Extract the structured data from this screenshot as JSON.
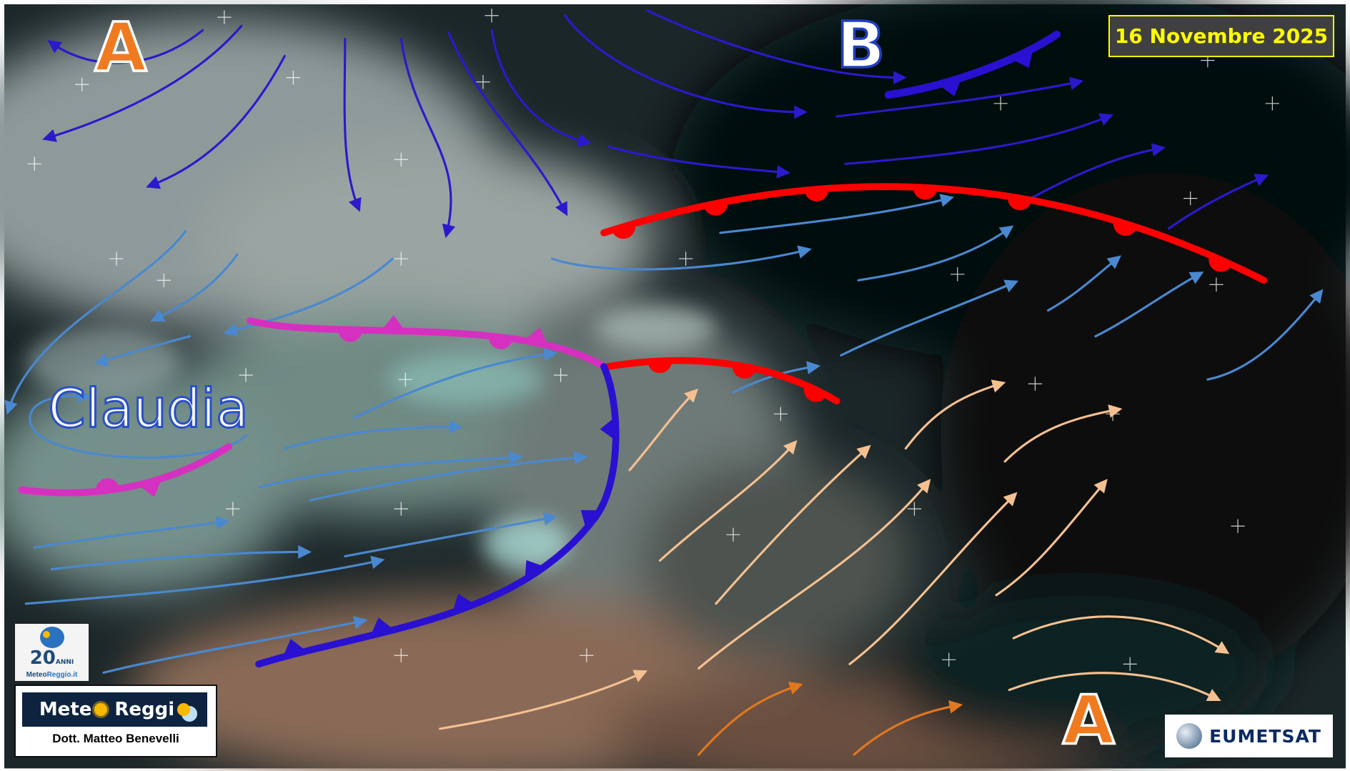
{
  "date_label": "16 Novembre 2025",
  "pressure_centers": [
    {
      "label": "A",
      "type": "high",
      "fill": "#f07a20"
    },
    {
      "label": "B",
      "type": "low",
      "fill": "#ffffff"
    },
    {
      "label": "A",
      "type": "high",
      "fill": "#f07a20"
    }
  ],
  "storm_name": "Claudia",
  "fronts": {
    "warm_color": "#ff0000",
    "cold_color": "#2a10d0",
    "occluded_color": "#d630c0"
  },
  "flow_colors": {
    "cold_flow": "#2a1acc",
    "mild_flow": "#4a88d0",
    "warm_flow": "#f5c090",
    "hot_flow": "#e07820"
  },
  "logos": {
    "anniversary_number": "20",
    "anniversary_word": "ANNI",
    "site_prefix": "Meteo",
    "site_suffix": "Reggio.it",
    "brand_left": "Mete",
    "brand_right": "Reggi",
    "author": "Dott. Matteo Benevelli",
    "satellite_credit": "EUMETSAT"
  }
}
